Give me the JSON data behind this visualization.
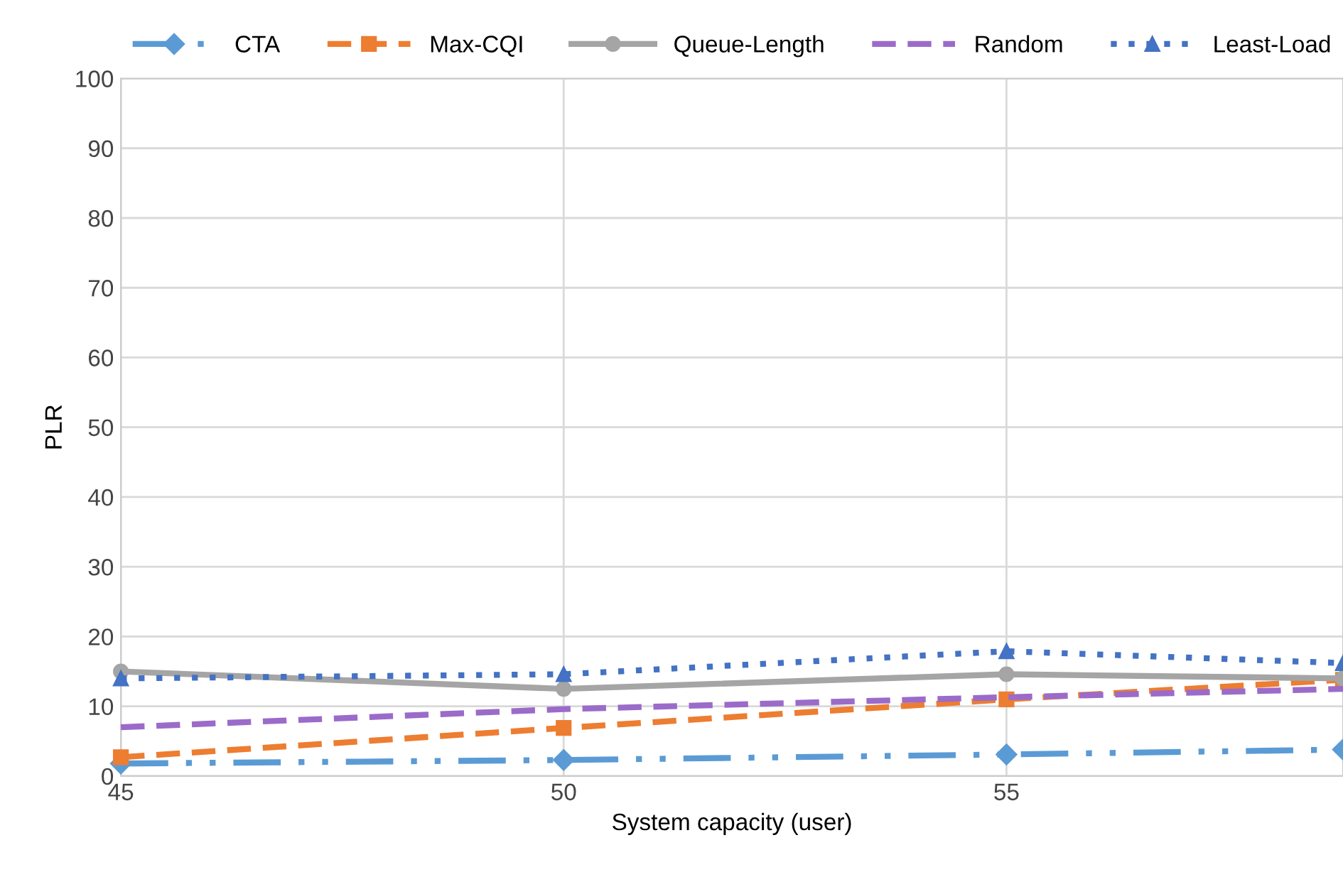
{
  "chart_data": {
    "type": "line",
    "xlabel": "System capacity (user)",
    "ylabel": "PLR",
    "x": [
      45,
      50,
      55,
      58.8
    ],
    "series": [
      {
        "name": "CTA",
        "color": "#5b9bd5",
        "values": [
          1.8,
          2.3,
          3.1,
          3.8
        ],
        "marker": "diamond",
        "line_style": "dashdot"
      },
      {
        "name": "Max-CQI",
        "color": "#ed7d31",
        "values": [
          2.7,
          6.9,
          11,
          13.8
        ],
        "marker": "square",
        "line_style": "dashed"
      },
      {
        "name": "Queue-Length",
        "color": "#a5a5a5",
        "values": [
          15,
          12.5,
          14.6,
          14
        ],
        "marker": "circle",
        "line_style": "solid"
      },
      {
        "name": "Random",
        "color": "#9b6bc9",
        "values": [
          7,
          9.6,
          11.3,
          12.5
        ],
        "marker": "none",
        "line_style": "dashed"
      },
      {
        "name": "Least-Load",
        "color": "#4472c4",
        "values": [
          14,
          14.6,
          17.9,
          16.2
        ],
        "marker": "triangle",
        "line_style": "dotted"
      }
    ],
    "xlim": [
      45,
      58.8
    ],
    "xticks": [
      45,
      50,
      55
    ],
    "ylim": [
      0,
      100
    ],
    "yticks": [
      0,
      10,
      20,
      30,
      40,
      50,
      60,
      70,
      80,
      90,
      100
    ],
    "grid": true,
    "legend": "top"
  }
}
